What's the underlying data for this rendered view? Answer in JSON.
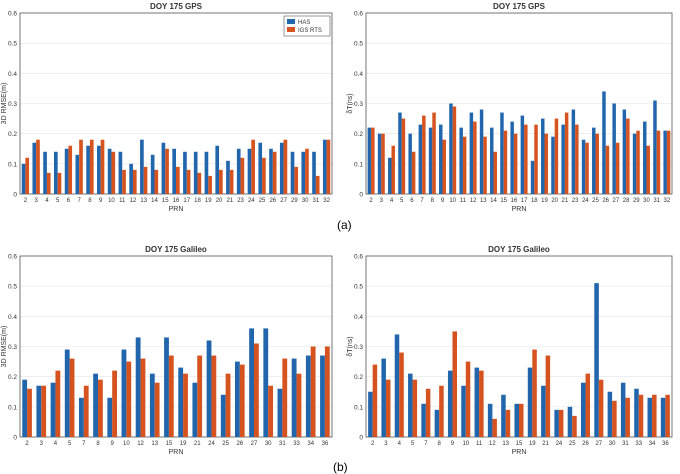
{
  "figure": {
    "captions": [
      "(a)",
      "(b)"
    ]
  },
  "colors": {
    "has": "#2166ac",
    "igs_rts": "#d6531f",
    "axis": "#555555",
    "grid": "#e4e4e4",
    "text": "#333333"
  },
  "chart_data": [
    {
      "type": "bar",
      "title": "DOY 175 GPS",
      "xlabel": "PRN",
      "ylabel": "3D RMSE(m)",
      "ylim": [
        0,
        0.6
      ],
      "yticks": [
        "0",
        "0.1",
        "0.2",
        "0.3",
        "0.4",
        "0.5",
        "0.6"
      ],
      "legend_position": "top-right",
      "categories": [
        "2",
        "3",
        "4",
        "5",
        "6",
        "7",
        "8",
        "9",
        "10",
        "11",
        "12",
        "13",
        "14",
        "15",
        "16",
        "17",
        "18",
        "19",
        "20",
        "21",
        "23",
        "24",
        "25",
        "26",
        "27",
        "29",
        "30",
        "31",
        "32"
      ],
      "series": [
        {
          "name": "HAS",
          "values": [
            0.1,
            0.17,
            0.14,
            0.14,
            0.15,
            0.13,
            0.16,
            0.16,
            0.15,
            0.14,
            0.1,
            0.18,
            0.13,
            0.17,
            0.15,
            0.14,
            0.14,
            0.14,
            0.16,
            0.11,
            0.15,
            0.15,
            0.17,
            0.15,
            0.17,
            0.14,
            0.14,
            0.14,
            0.18
          ]
        },
        {
          "name": "IGS RTS",
          "values": [
            0.12,
            0.18,
            0.07,
            0.07,
            0.16,
            0.18,
            0.18,
            0.18,
            0.14,
            0.08,
            0.08,
            0.09,
            0.08,
            0.15,
            0.09,
            0.08,
            0.07,
            0.06,
            0.08,
            0.08,
            0.12,
            0.18,
            0.12,
            0.14,
            0.18,
            0.09,
            0.15,
            0.06,
            0.18
          ]
        }
      ]
    },
    {
      "type": "bar",
      "title": "DOY 175 GPS",
      "xlabel": "PRN",
      "ylabel": "δT(ns)",
      "ylim": [
        0,
        0.6
      ],
      "yticks": [
        "0",
        "0.1",
        "0.2",
        "0.3",
        "0.4",
        "0.5",
        "0.6"
      ],
      "categories": [
        "2",
        "3",
        "4",
        "5",
        "6",
        "7",
        "8",
        "9",
        "10",
        "11",
        "12",
        "13",
        "14",
        "15",
        "16",
        "17",
        "18",
        "19",
        "20",
        "21",
        "23",
        "24",
        "25",
        "26",
        "27",
        "28",
        "29",
        "30",
        "31",
        "32"
      ],
      "series": [
        {
          "name": "HAS",
          "values": [
            0.22,
            0.2,
            0.12,
            0.27,
            0.2,
            0.23,
            0.22,
            0.23,
            0.3,
            0.22,
            0.27,
            0.28,
            0.22,
            0.27,
            0.24,
            0.26,
            0.11,
            0.25,
            0.19,
            0.23,
            0.28,
            0.18,
            0.22,
            0.34,
            0.3,
            0.28,
            0.2,
            0.24,
            0.31,
            0.21
          ]
        },
        {
          "name": "IGS RTS",
          "values": [
            0.22,
            0.2,
            0.16,
            0.25,
            0.14,
            0.26,
            0.27,
            0.18,
            0.29,
            0.19,
            0.24,
            0.19,
            0.14,
            0.21,
            0.2,
            0.23,
            0.23,
            0.2,
            0.25,
            0.27,
            0.23,
            0.17,
            0.2,
            0.16,
            0.17,
            0.25,
            0.21,
            0.16,
            0.21,
            0.21
          ]
        }
      ]
    },
    {
      "type": "bar",
      "title": "DOY 175 Galileo",
      "xlabel": "PRN",
      "ylabel": "3D RMSE(m)",
      "ylim": [
        0,
        0.6
      ],
      "yticks": [
        "0",
        "0.1",
        "0.2",
        "0.3",
        "0.4",
        "0.5",
        "0.6"
      ],
      "categories": [
        "2",
        "3",
        "4",
        "5",
        "7",
        "8",
        "9",
        "10",
        "12",
        "13",
        "15",
        "19",
        "21",
        "24",
        "25",
        "26",
        "27",
        "30",
        "31",
        "33",
        "34",
        "36"
      ],
      "series": [
        {
          "name": "HAS",
          "values": [
            0.19,
            0.17,
            0.18,
            0.29,
            0.13,
            0.21,
            0.13,
            0.29,
            0.33,
            0.21,
            0.33,
            0.23,
            0.18,
            0.32,
            0.14,
            0.25,
            0.36,
            0.36,
            0.16,
            0.26,
            0.27,
            0.27
          ]
        },
        {
          "name": "IGS RTS",
          "values": [
            0.16,
            0.17,
            0.22,
            0.26,
            0.17,
            0.19,
            0.22,
            0.25,
            0.26,
            0.18,
            0.27,
            0.21,
            0.27,
            0.27,
            0.21,
            0.24,
            0.31,
            0.17,
            0.26,
            0.21,
            0.3,
            0.3
          ]
        }
      ]
    },
    {
      "type": "bar",
      "title": "DOY 175 Galileo",
      "xlabel": "PRN",
      "ylabel": "δT(ns)",
      "ylim": [
        0,
        0.6
      ],
      "yticks": [
        "0",
        "0.1",
        "0.2",
        "0.3",
        "0.4",
        "0.5",
        "0.6"
      ],
      "categories": [
        "2",
        "3",
        "4",
        "5",
        "7",
        "8",
        "9",
        "10",
        "11",
        "12",
        "13",
        "15",
        "19",
        "21",
        "24",
        "25",
        "26",
        "27",
        "30",
        "31",
        "33",
        "34",
        "36"
      ],
      "series": [
        {
          "name": "HAS",
          "values": [
            0.15,
            0.26,
            0.34,
            0.21,
            0.11,
            0.09,
            0.22,
            0.17,
            0.23,
            0.11,
            0.14,
            0.11,
            0.23,
            0.17,
            0.09,
            0.1,
            0.18,
            0.51,
            0.15,
            0.18,
            0.16,
            0.13,
            0.13
          ]
        },
        {
          "name": "IGS RTS",
          "values": [
            0.24,
            0.19,
            0.28,
            0.19,
            0.16,
            0.17,
            0.35,
            0.25,
            0.22,
            0.06,
            0.09,
            0.11,
            0.29,
            0.27,
            0.09,
            0.07,
            0.21,
            0.19,
            0.12,
            0.13,
            0.14,
            0.14,
            0.14
          ]
        }
      ]
    }
  ]
}
